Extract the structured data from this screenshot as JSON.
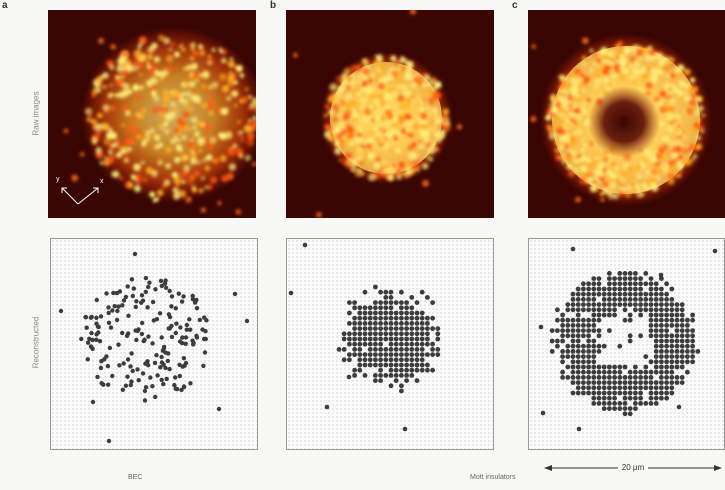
{
  "panels": {
    "a": {
      "letter": "a"
    },
    "b": {
      "letter": "b"
    },
    "c": {
      "letter": "c"
    }
  },
  "row_labels": {
    "top": "Raw images",
    "bottom": "Reconstructed"
  },
  "axis_labels": {
    "y": "y",
    "x": "x"
  },
  "bottom_labels": {
    "bec": "BEC",
    "mott": "Mott insulators"
  },
  "scale_bar": {
    "label": "20 μm"
  },
  "colors": {
    "raw_background": "#3a0604",
    "raw_glow": "#ffe680",
    "raw_mid": "#ff7a10",
    "reconstructed_atom": "#3c3c3c",
    "lattice_dot": "#cfcfcf"
  }
}
